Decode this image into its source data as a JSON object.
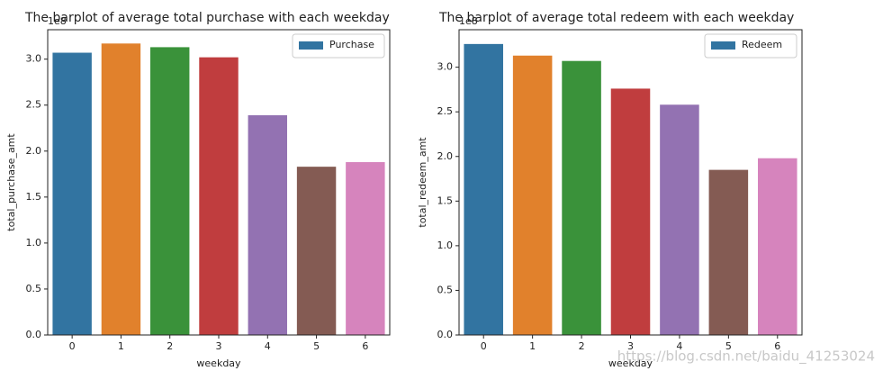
{
  "chart_data": [
    {
      "type": "bar",
      "title": "The barplot of average total purchase with each weekday",
      "xlabel": "weekday",
      "ylabel": "total_purchase_amt",
      "offset_text": "1e8",
      "categories": [
        "0",
        "1",
        "2",
        "3",
        "4",
        "5",
        "6"
      ],
      "series": [
        {
          "name": "Purchase",
          "color": "#3274a1",
          "values": [
            3.07,
            3.17,
            3.13,
            3.02,
            2.39,
            1.83,
            1.88
          ]
        }
      ],
      "bar_colors": [
        "#3274a1",
        "#e1812c",
        "#3a923a",
        "#c03d3e",
        "#9372b2",
        "#845b53",
        "#d684bd"
      ],
      "ylim": [
        0,
        3.32
      ],
      "yticks": [
        {
          "value": 0,
          "label": "0.0"
        },
        {
          "value": 0.5,
          "label": "0.5"
        },
        {
          "value": 1,
          "label": "1.0"
        },
        {
          "value": 1.5,
          "label": "1.5"
        },
        {
          "value": 2,
          "label": "2.0"
        },
        {
          "value": 2.5,
          "label": "2.5"
        },
        {
          "value": 3,
          "label": "3.0"
        }
      ],
      "legend_position": "upper right"
    },
    {
      "type": "bar",
      "title": "The barplot of average total redeem with each weekday",
      "xlabel": "weekday",
      "ylabel": "total_redeem_amt",
      "offset_text": "1e8",
      "categories": [
        "0",
        "1",
        "2",
        "3",
        "4",
        "5",
        "6"
      ],
      "series": [
        {
          "name": "Redeem",
          "color": "#3274a1",
          "values": [
            3.26,
            3.13,
            3.07,
            2.76,
            2.58,
            1.85,
            1.98
          ]
        }
      ],
      "bar_colors": [
        "#3274a1",
        "#e1812c",
        "#3a923a",
        "#c03d3e",
        "#9372b2",
        "#845b53",
        "#d684bd"
      ],
      "ylim": [
        0,
        3.42
      ],
      "yticks": [
        {
          "value": 0,
          "label": "0.0"
        },
        {
          "value": 0.5,
          "label": "0.5"
        },
        {
          "value": 1,
          "label": "1.0"
        },
        {
          "value": 1.5,
          "label": "1.5"
        },
        {
          "value": 2,
          "label": "2.0"
        },
        {
          "value": 2.5,
          "label": "2.5"
        },
        {
          "value": 3,
          "label": "3.0"
        }
      ],
      "legend_position": "upper right"
    }
  ],
  "watermark": "https://blog.csdn.net/baidu_41253024"
}
